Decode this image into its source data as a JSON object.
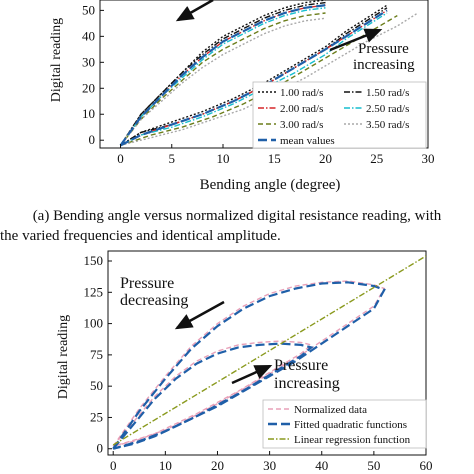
{
  "caption_a_line1": "(a) Bending angle versus normalized digital resistance reading, with",
  "caption_a_line2": "the varied frequencies and identical amplitude.",
  "chart_data": [
    {
      "type": "line",
      "ylabel": "Digital reading",
      "xlabel": "Bending angle (degree)",
      "xlim": [
        -2,
        30
      ],
      "ylim": [
        -3,
        54
      ],
      "x_ticks": [
        0,
        5,
        10,
        15,
        20,
        25,
        30
      ],
      "y_ticks": [
        0,
        10,
        20,
        30,
        40,
        50
      ],
      "x_tick_labels": [
        "0",
        "5",
        "10",
        "15",
        "20",
        "25",
        "30"
      ],
      "y_tick_labels": [
        "0",
        "10",
        "20",
        "30",
        "40",
        "50"
      ],
      "annotations": [
        {
          "text": "Pressure",
          "x": 23,
          "y": 44
        },
        {
          "text": "increasing",
          "x": 22.5,
          "y": 39
        }
      ],
      "legend_location": "lower-right",
      "legend_columns": 2,
      "series": [
        {
          "name": "1.00 rad/s",
          "color": "#111111",
          "style": "dotted",
          "x_upper": [
            0,
            2,
            4,
            6,
            8,
            10,
            12,
            14,
            16,
            18,
            20
          ],
          "y_upper": [
            -2,
            10,
            18,
            26,
            34,
            40,
            44,
            48,
            51,
            53,
            54
          ],
          "x_lower": [
            0,
            2,
            5,
            8,
            11,
            14,
            17,
            20,
            22,
            24,
            26
          ],
          "y_lower": [
            -2,
            3,
            7,
            11,
            16,
            22,
            29,
            36,
            42,
            47,
            52
          ]
        },
        {
          "name": "1.50 rad/s",
          "color": "#111111",
          "style": "dashdot",
          "x_upper": [
            0,
            2,
            4,
            6,
            8,
            10,
            12,
            14,
            16,
            18,
            20
          ],
          "y_upper": [
            -2,
            10,
            18,
            26,
            33,
            39,
            43,
            47,
            50,
            52,
            53
          ],
          "x_lower": [
            0,
            2,
            5,
            8,
            11,
            14,
            17,
            20,
            22,
            24,
            26
          ],
          "y_lower": [
            -2,
            3,
            6,
            10,
            15,
            21,
            28,
            35,
            41,
            46,
            51
          ]
        },
        {
          "name": "2.00 rad/s",
          "color": "#d62728",
          "style": "dashdot",
          "x_upper": [
            0,
            2,
            4,
            6,
            8,
            10,
            12,
            14,
            16,
            18,
            20
          ],
          "y_upper": [
            -2,
            9,
            17,
            25,
            32,
            38,
            42,
            46,
            49,
            51,
            52
          ],
          "x_lower": [
            0,
            2,
            5,
            8,
            11,
            14,
            17,
            20,
            22,
            24,
            26
          ],
          "y_lower": [
            -2,
            2,
            6,
            10,
            15,
            21,
            28,
            35,
            40,
            45,
            50
          ]
        },
        {
          "name": "2.50 rad/s",
          "color": "#17becf",
          "style": "dashdot",
          "x_upper": [
            0,
            2,
            4,
            6,
            8,
            10,
            12,
            14,
            16,
            18,
            20
          ],
          "y_upper": [
            -2,
            9,
            17,
            24,
            31,
            37,
            41,
            45,
            48,
            50,
            51
          ],
          "x_lower": [
            0,
            2,
            5,
            8,
            11,
            14,
            17,
            20,
            22,
            24,
            26
          ],
          "y_lower": [
            -2,
            2,
            5,
            9,
            14,
            20,
            26,
            33,
            39,
            44,
            49
          ]
        },
        {
          "name": "3.00 rad/s",
          "color": "#6b7d1a",
          "style": "dashed",
          "x_upper": [
            0,
            2,
            4,
            6,
            8,
            10,
            12,
            14,
            16,
            18,
            20
          ],
          "y_upper": [
            -2,
            8,
            16,
            23,
            30,
            35,
            39,
            43,
            46,
            48,
            49
          ],
          "x_lower": [
            0,
            3,
            6,
            9,
            12,
            15,
            18,
            21,
            24,
            27
          ],
          "y_lower": [
            -2,
            2,
            5,
            9,
            14,
            20,
            27,
            34,
            41,
            48
          ]
        },
        {
          "name": "3.50 rad/s",
          "color": "#a9a9a9",
          "style": "dotted",
          "x_upper": [
            0,
            2,
            4,
            6,
            8,
            10,
            12,
            14,
            16,
            18,
            20
          ],
          "y_upper": [
            -2,
            8,
            15,
            22,
            28,
            33,
            37,
            41,
            44,
            46,
            47
          ],
          "x_lower": [
            0,
            3,
            6,
            9,
            12,
            15,
            18,
            21,
            24,
            27,
            29
          ],
          "y_lower": [
            -2,
            1,
            4,
            8,
            12,
            18,
            24,
            31,
            38,
            44,
            49
          ]
        },
        {
          "name": "mean values",
          "color": "#1f5fa8",
          "style": "longdash",
          "x_upper": [
            0,
            2,
            4,
            6,
            8,
            10,
            12,
            14,
            16,
            18,
            20
          ],
          "y_upper": [
            -2,
            9,
            17,
            25,
            32,
            38,
            42,
            46,
            49,
            51,
            52
          ],
          "x_lower": [
            0,
            2,
            5,
            8,
            11,
            14,
            17,
            20,
            22,
            24,
            26
          ],
          "y_lower": [
            -2,
            2,
            6,
            10,
            15,
            21,
            28,
            35,
            40,
            45,
            50
          ]
        }
      ]
    },
    {
      "type": "line",
      "ylabel": "Digital reading",
      "xlabel": "",
      "xlim": [
        -1,
        60
      ],
      "ylim": [
        -5,
        158
      ],
      "x_ticks": [
        0,
        10,
        20,
        30,
        40,
        50,
        60
      ],
      "y_ticks": [
        0,
        25,
        50,
        75,
        100,
        125,
        150
      ],
      "x_tick_labels": [
        "0",
        "10",
        "20",
        "30",
        "40",
        "50",
        "60"
      ],
      "y_tick_labels": [
        "0",
        "25",
        "50",
        "75",
        "100",
        "125",
        "150"
      ],
      "annotations": [
        {
          "text": "Pressure",
          "x": 7,
          "y": 132
        },
        {
          "text": "decreasing",
          "x": 7,
          "y": 118
        },
        {
          "text": "Pressure",
          "x": 31,
          "y": 50
        },
        {
          "text": "increasing",
          "x": 31,
          "y": 36
        }
      ],
      "legend_location": "lower-right",
      "series": [
        {
          "name": "Normalized data",
          "color": "#e8a0b8",
          "style": "dashed",
          "loops": [
            {
              "x": [
                0,
                5,
                10,
                15,
                20,
                25,
                30,
                35,
                40,
                45,
                50,
                52,
                50,
                45,
                40,
                35,
                30,
                25,
                20,
                15,
                10,
                5,
                0
              ],
              "y": [
                2,
                32,
                58,
                82,
                100,
                114,
                124,
                130,
                133,
                134,
                131,
                128,
                114,
                100,
                86,
                72,
                60,
                48,
                36,
                25,
                15,
                8,
                2
              ]
            },
            {
              "x": [
                0,
                4,
                8,
                12,
                16,
                20,
                24,
                28,
                32,
                36,
                38,
                36,
                32,
                28,
                24,
                20,
                16,
                12,
                8,
                4,
                0
              ],
              "y": [
                2,
                22,
                42,
                58,
                70,
                78,
                83,
                85,
                86,
                85,
                83,
                76,
                66,
                56,
                46,
                37,
                28,
                20,
                12,
                6,
                2
              ]
            }
          ]
        },
        {
          "name": "Fitted quadratic functions",
          "color": "#1f5fa8",
          "style": "longdash",
          "loops": [
            {
              "x": [
                0,
                5,
                10,
                15,
                20,
                25,
                30,
                35,
                40,
                45,
                50,
                52,
                50,
                45,
                40,
                35,
                30,
                25,
                20,
                15,
                10,
                5,
                0
              ],
              "y": [
                0,
                30,
                56,
                80,
                98,
                112,
                122,
                128,
                132,
                133,
                130,
                127,
                112,
                98,
                84,
                70,
                58,
                46,
                34,
                24,
                14,
                6,
                0
              ]
            },
            {
              "x": [
                0,
                4,
                8,
                12,
                16,
                20,
                24,
                28,
                32,
                36,
                38,
                36,
                32,
                28,
                24,
                20,
                16,
                12,
                8,
                4,
                0
              ],
              "y": [
                0,
                20,
                40,
                56,
                68,
                76,
                81,
                83,
                84,
                83,
                81,
                74,
                64,
                54,
                44,
                35,
                26,
                18,
                10,
                4,
                0
              ]
            }
          ]
        },
        {
          "name": "Linear regression function",
          "color": "#8a9a1e",
          "style": "dashdot",
          "x": [
            0,
            60
          ],
          "y": [
            3,
            154
          ]
        }
      ]
    }
  ]
}
